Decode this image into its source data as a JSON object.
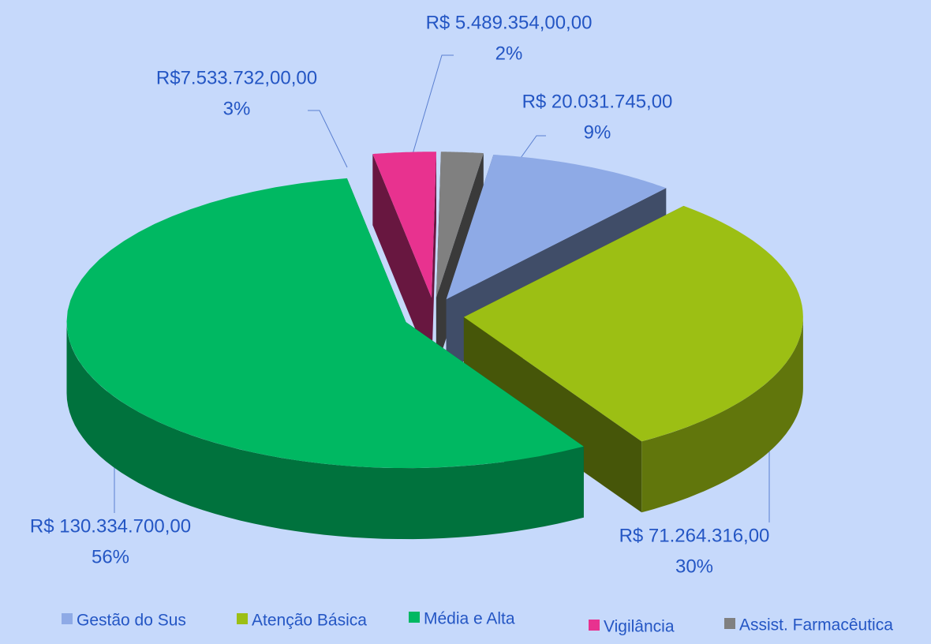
{
  "chart_data": {
    "type": "pie",
    "categories": [
      "Gestão do Sus",
      "Atenção Básica",
      "Média e Alta",
      "Vigilância",
      "Assist. Farmacêutica"
    ],
    "values": [
      9,
      30,
      56,
      3,
      2
    ],
    "value_labels": [
      "9%",
      "30%",
      "56%",
      "3%",
      "2%"
    ],
    "amount_labels": [
      "R$ 20.031.745,00",
      "R$ 71.264.316,00",
      "R$ 130.334.700,00",
      "R$7.533.732,00,00",
      "R$ 5.489.354,00,00"
    ],
    "colors": [
      "#8eaae6",
      "#9cbf14",
      "#00b862",
      "#e8328f",
      "#808080"
    ],
    "legend": "bottom"
  }
}
